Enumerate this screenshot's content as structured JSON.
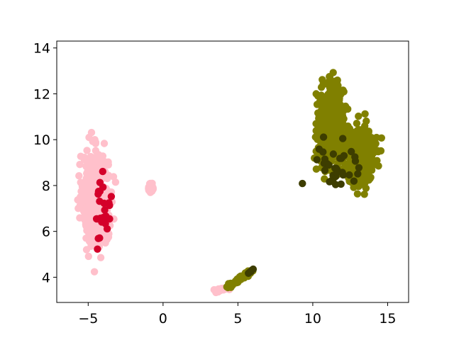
{
  "chart_data": {
    "type": "scatter",
    "title": "",
    "xlabel": "",
    "ylabel": "",
    "xlim": [
      -7.1,
      16.4
    ],
    "ylim": [
      2.9,
      14.3
    ],
    "xticks": [
      -5,
      0,
      5,
      10,
      15
    ],
    "yticks": [
      4,
      6,
      8,
      10,
      12,
      14
    ],
    "xtick_labels": [
      "−5",
      "0",
      "5",
      "10",
      "15"
    ],
    "ytick_labels": [
      "4",
      "6",
      "8",
      "10",
      "12",
      "14"
    ],
    "grid": false,
    "legend": "none",
    "clusters": [
      {
        "color": "#ffc0cb",
        "center": [
          -4.5,
          7.4
        ],
        "spread": [
          0.75,
          1.75
        ],
        "n": 700,
        "bounds": [
          -6.0,
          -2.9,
          3.8,
          11.1
        ]
      },
      {
        "color": "#d4002a",
        "center": [
          -4.0,
          7.0
        ],
        "spread": [
          0.45,
          1.3
        ],
        "n": 28,
        "bounds": [
          -5.2,
          -3.3,
          4.0,
          10.2
        ]
      },
      {
        "color": "#ffc0cb",
        "center": [
          -0.8,
          7.9
        ],
        "spread": [
          0.15,
          0.2
        ],
        "n": 25,
        "bounds": [
          -1.1,
          -0.4,
          7.5,
          8.3
        ]
      },
      {
        "color": "#808000",
        "center": [
          11.2,
          10.6
        ],
        "spread": [
          0.8,
          1.5
        ],
        "n": 520,
        "bounds": [
          9.2,
          12.7,
          6.9,
          13.8
        ]
      },
      {
        "color": "#808000",
        "center": [
          13.2,
          9.3
        ],
        "spread": [
          0.8,
          1.0
        ],
        "n": 480,
        "bounds": [
          11.5,
          15.1,
          7.0,
          12.3
        ]
      },
      {
        "color": "#3d3d00",
        "center": [
          11.6,
          8.8
        ],
        "spread": [
          1.3,
          1.3
        ],
        "n": 35,
        "bounds": [
          9.2,
          13.5,
          6.9,
          10.5
        ]
      }
    ],
    "strands": [
      {
        "color": "#ffc0cb",
        "from": [
          3.4,
          3.4
        ],
        "to": [
          4.4,
          3.55
        ],
        "n": 18,
        "jitter": 0.05
      },
      {
        "color": "#808000",
        "from": [
          4.3,
          3.55
        ],
        "to": [
          5.9,
          4.25
        ],
        "n": 60,
        "jitter": 0.06
      },
      {
        "color": "#3d3d00",
        "from": [
          5.7,
          4.15
        ],
        "to": [
          6.0,
          4.35
        ],
        "n": 5,
        "jitter": 0.03
      }
    ]
  }
}
